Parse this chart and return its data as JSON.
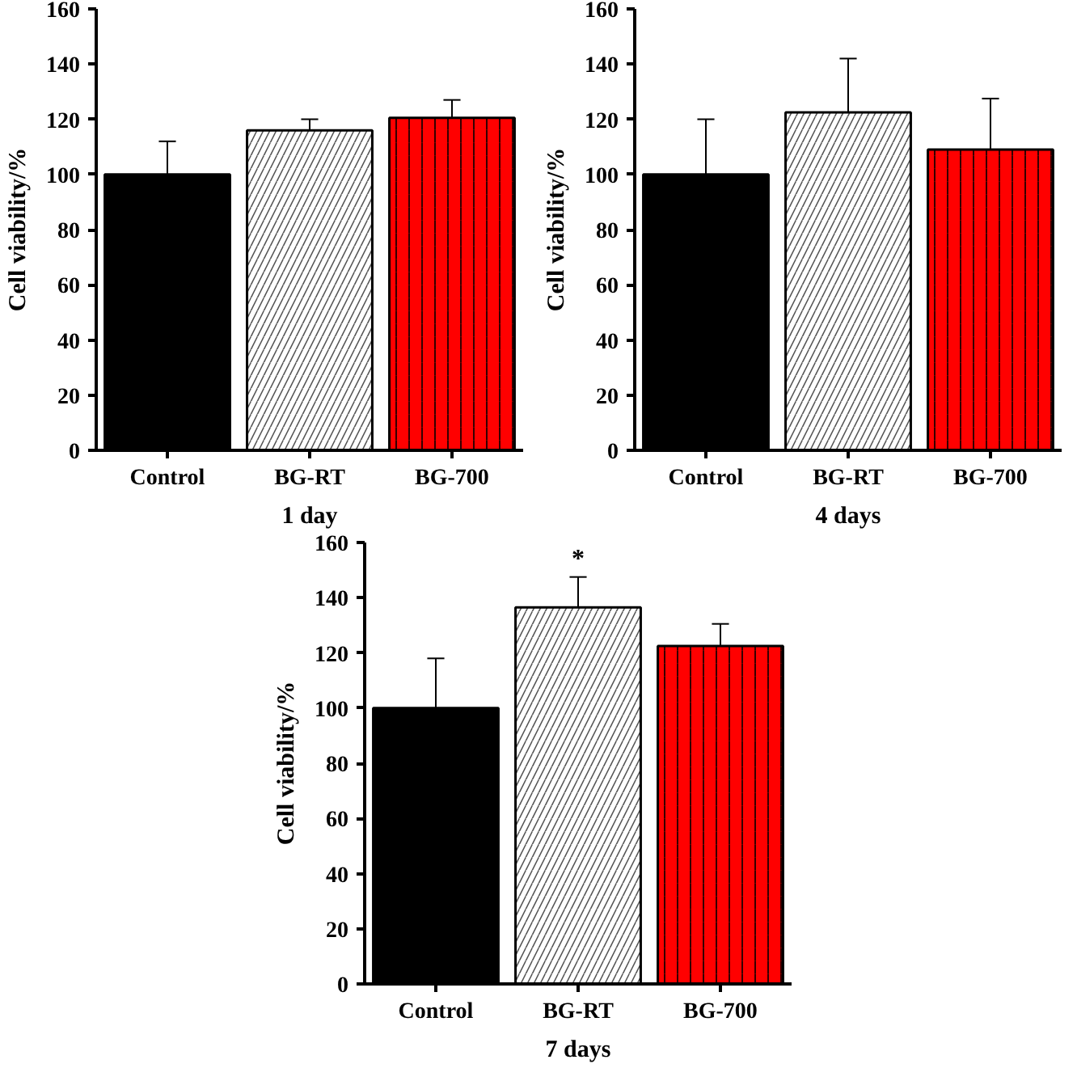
{
  "chart_data": [
    {
      "type": "bar",
      "xlabel": "1 day",
      "ylabel": "Cell viability/%",
      "categories": [
        "Control",
        "BG-RT",
        "BG-700"
      ],
      "values": [
        100,
        116,
        120.5
      ],
      "colors": [
        "#000000",
        "#ffffff",
        "#ff0000"
      ],
      "errors": [
        [
          100,
          112
        ],
        [
          116,
          120
        ],
        [
          120.5,
          127
        ]
      ],
      "ylim": [
        0,
        160
      ],
      "yticks": [
        0,
        20,
        40,
        60,
        80,
        100,
        120,
        140,
        160
      ],
      "grid": false
    },
    {
      "type": "bar",
      "xlabel": "4 days",
      "ylabel": "Cell viability/%",
      "categories": [
        "Control",
        "BG-RT",
        "BG-700"
      ],
      "values": [
        100,
        122.5,
        109
      ],
      "colors": [
        "#000000",
        "#ffffff",
        "#ff0000"
      ],
      "errors": [
        [
          100,
          120
        ],
        [
          122.5,
          142
        ],
        [
          109,
          127.5
        ]
      ],
      "ylim": [
        0,
        160
      ],
      "yticks": [
        0,
        20,
        40,
        60,
        80,
        100,
        120,
        140,
        160
      ],
      "grid": false
    },
    {
      "type": "bar",
      "xlabel": "7 days",
      "ylabel": "Cell viability/%",
      "categories": [
        "Control",
        "BG-RT",
        "BG-700"
      ],
      "values": [
        100,
        136.5,
        122.5
      ],
      "colors": [
        "#000000",
        "#ffffff",
        "#ff0000"
      ],
      "errors": [
        [
          100,
          118
        ],
        [
          136.5,
          147.5
        ],
        [
          122.5,
          130.5
        ]
      ],
      "ylim": [
        0,
        160
      ],
      "yticks": [
        0,
        20,
        40,
        60,
        80,
        100,
        120,
        140,
        160
      ],
      "grid": false,
      "annotations": [
        {
          "text": "*",
          "x": "BG-RT",
          "y": 149
        }
      ]
    }
  ]
}
